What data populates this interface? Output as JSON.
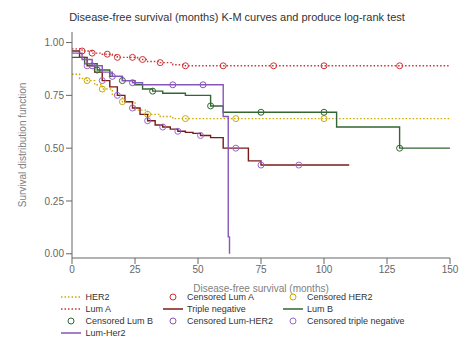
{
  "chart_data": {
    "type": "line",
    "title": "Disease-free survival (months) K-M curves and produce log-rank test",
    "xlabel": "Disease-free survival (months)",
    "ylabel": "Survival distribution function",
    "xlim": [
      0,
      150
    ],
    "ylim": [
      -0.02,
      1.05
    ],
    "xticks": [
      0,
      25,
      50,
      75,
      100,
      125,
      150
    ],
    "yticks": [
      {
        "value": 0,
        "label": "0.00"
      },
      {
        "value": 0.25,
        "label": "0.25"
      },
      {
        "value": 0.5,
        "label": "0.50"
      },
      {
        "value": 0.75,
        "label": "0.75"
      },
      {
        "value": 1,
        "label": "1.00"
      }
    ],
    "grid": false,
    "legend": "bottom",
    "series": [
      {
        "name": "HER2",
        "type": "line",
        "line_style": "dotted",
        "color": "#ccaa00",
        "x": [
          0,
          3,
          6,
          9,
          12,
          16,
          20,
          25,
          30,
          35,
          40,
          45,
          55,
          65,
          80,
          100,
          120,
          150
        ],
        "values": [
          0.85,
          0.83,
          0.82,
          0.8,
          0.78,
          0.75,
          0.72,
          0.68,
          0.66,
          0.65,
          0.64,
          0.64,
          0.64,
          0.64,
          0.64,
          0.64,
          0.64,
          0.64
        ]
      },
      {
        "name": "Censored Lum A",
        "type": "scatter",
        "marker": "circle",
        "color": "#cc3333",
        "x": [
          4,
          8,
          14,
          18,
          24,
          28,
          35,
          45,
          60,
          80,
          100,
          130
        ],
        "values": [
          0.96,
          0.95,
          0.945,
          0.93,
          0.93,
          0.92,
          0.905,
          0.89,
          0.89,
          0.89,
          0.89,
          0.89
        ]
      },
      {
        "name": "Censored HER2",
        "type": "scatter",
        "marker": "circle",
        "color": "#ccaa00",
        "x": [
          6,
          12,
          20,
          30,
          45,
          65,
          100
        ],
        "values": [
          0.82,
          0.78,
          0.72,
          0.66,
          0.64,
          0.64,
          0.64
        ]
      },
      {
        "name": "Lum A",
        "type": "line",
        "line_style": "dotted",
        "color": "#cc3333",
        "x": [
          0,
          2,
          4,
          6,
          8,
          10,
          12,
          14,
          16,
          18,
          20,
          22,
          24,
          26,
          28,
          30,
          35,
          40,
          45,
          50,
          55,
          60,
          65,
          70,
          80,
          100,
          130,
          150
        ],
        "values": [
          0.97,
          0.97,
          0.96,
          0.96,
          0.95,
          0.95,
          0.945,
          0.945,
          0.94,
          0.93,
          0.93,
          0.93,
          0.93,
          0.92,
          0.92,
          0.91,
          0.905,
          0.895,
          0.89,
          0.89,
          0.89,
          0.89,
          0.89,
          0.89,
          0.89,
          0.89,
          0.89,
          0.89
        ]
      },
      {
        "name": "Triple negative",
        "type": "line",
        "line_style": "solid",
        "color": "#7a1a1a",
        "x": [
          0,
          3,
          6,
          9,
          12,
          15,
          18,
          21,
          24,
          27,
          30,
          33,
          36,
          39,
          42,
          45,
          48,
          51,
          55,
          60,
          65,
          70,
          75,
          80,
          90,
          100,
          110
        ],
        "values": [
          0.96,
          0.93,
          0.89,
          0.86,
          0.82,
          0.79,
          0.75,
          0.72,
          0.69,
          0.66,
          0.63,
          0.61,
          0.6,
          0.59,
          0.58,
          0.575,
          0.57,
          0.56,
          0.55,
          0.5,
          0.5,
          0.44,
          0.42,
          0.42,
          0.42,
          0.42,
          0.42
        ]
      },
      {
        "name": "Lum B",
        "type": "line",
        "line_style": "solid",
        "color": "#336633",
        "x": [
          0,
          5,
          10,
          15,
          20,
          25,
          28,
          32,
          36,
          40,
          45,
          50,
          55,
          60,
          65,
          70,
          75,
          80,
          90,
          100,
          105,
          130,
          145,
          150
        ],
        "values": [
          0.93,
          0.9,
          0.87,
          0.84,
          0.82,
          0.8,
          0.78,
          0.77,
          0.76,
          0.76,
          0.75,
          0.75,
          0.7,
          0.67,
          0.67,
          0.67,
          0.67,
          0.67,
          0.67,
          0.67,
          0.6,
          0.5,
          0.5,
          0.5
        ]
      },
      {
        "name": "Censored Lum B",
        "type": "scatter",
        "marker": "circle",
        "color": "#336633",
        "x": [
          10,
          20,
          32,
          55,
          75,
          100,
          130
        ],
        "values": [
          0.87,
          0.82,
          0.77,
          0.7,
          0.67,
          0.67,
          0.5
        ]
      },
      {
        "name": "Censored Lum-HER2",
        "type": "scatter",
        "marker": "circle",
        "color": "#8855bb",
        "x": [
          8,
          16,
          24,
          40,
          52
        ],
        "values": [
          0.89,
          0.84,
          0.81,
          0.8,
          0.8
        ]
      },
      {
        "name": "Censored triple negative",
        "type": "scatter",
        "marker": "circle",
        "color": "#9966cc",
        "x": [
          6,
          12,
          18,
          24,
          30,
          36,
          42,
          51,
          65,
          75,
          90
        ],
        "values": [
          0.89,
          0.82,
          0.75,
          0.69,
          0.63,
          0.6,
          0.58,
          0.56,
          0.5,
          0.42,
          0.42
        ]
      },
      {
        "name": "Lum-Her2",
        "type": "line",
        "line_style": "solid",
        "color": "#8855bb",
        "x": [
          0,
          4,
          8,
          12,
          16,
          20,
          24,
          28,
          32,
          36,
          40,
          44,
          48,
          52,
          56,
          60,
          62,
          62.5
        ],
        "values": [
          0.95,
          0.92,
          0.89,
          0.86,
          0.84,
          0.82,
          0.81,
          0.8,
          0.8,
          0.8,
          0.8,
          0.8,
          0.8,
          0.8,
          0.8,
          0.65,
          0.08,
          0.0
        ]
      }
    ]
  }
}
